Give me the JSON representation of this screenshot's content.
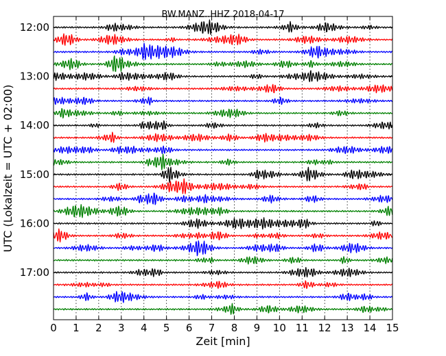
{
  "chart_data": {
    "type": "line",
    "title": "BW.MANZ..HHZ 2018-04-17",
    "xlabel": "Zeit  [min]",
    "ylabel": "UTC (Lokalzeit = UTC + 02:00)",
    "xlim": [
      0,
      15
    ],
    "x_ticks": [
      "0",
      "1",
      "2",
      "3",
      "4",
      "5",
      "6",
      "7",
      "8",
      "9",
      "10",
      "11",
      "12",
      "13",
      "14",
      "15"
    ],
    "y_tick_labels": [
      "12:00",
      "13:00",
      "14:00",
      "15:00",
      "16:00",
      "17:00"
    ],
    "trace_interval_minutes": 15,
    "start_time": "12:00",
    "trace_count": 24,
    "color_cycle": [
      "#000000",
      "#ff0000",
      "#0000ff",
      "#008000"
    ],
    "vertical_grid": true,
    "series": [
      {
        "start": "12:00"
      },
      {
        "start": "12:15"
      },
      {
        "start": "12:30"
      },
      {
        "start": "12:45"
      },
      {
        "start": "13:00"
      },
      {
        "start": "13:15"
      },
      {
        "start": "13:30"
      },
      {
        "start": "13:45"
      },
      {
        "start": "14:00"
      },
      {
        "start": "14:15"
      },
      {
        "start": "14:30"
      },
      {
        "start": "14:45"
      },
      {
        "start": "15:00"
      },
      {
        "start": "15:15"
      },
      {
        "start": "15:30"
      },
      {
        "start": "15:45"
      },
      {
        "start": "16:00"
      },
      {
        "start": "16:15"
      },
      {
        "start": "16:30"
      },
      {
        "start": "16:45"
      },
      {
        "start": "17:00"
      },
      {
        "start": "17:15"
      },
      {
        "start": "17:30"
      },
      {
        "start": "17:45"
      }
    ]
  }
}
